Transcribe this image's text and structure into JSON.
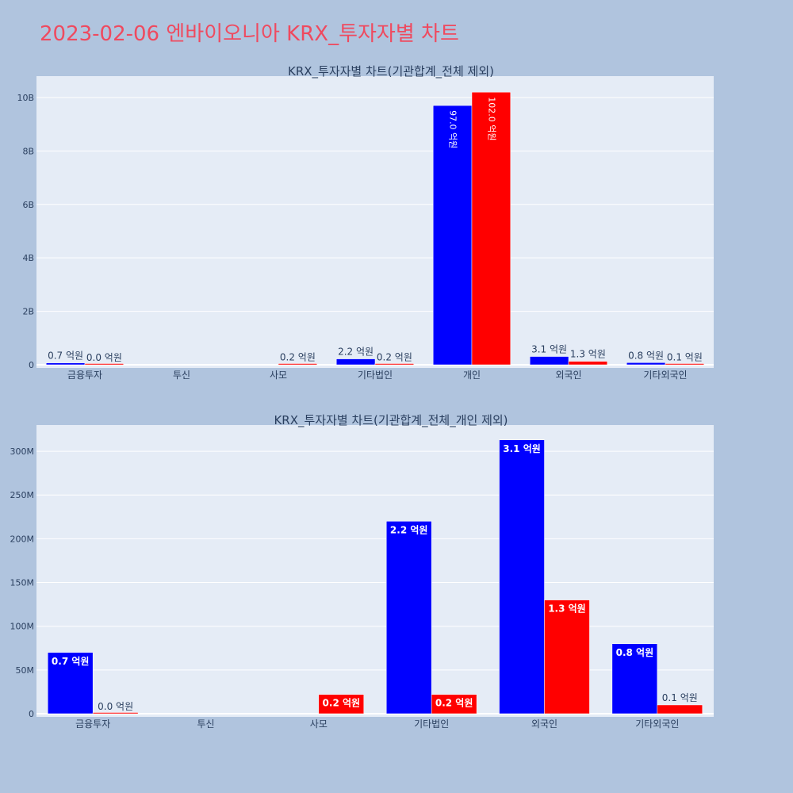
{
  "page": {
    "title": "2023-02-06 엔바이오니아 KRX_투자자별 차트"
  },
  "colors": {
    "buy": "#0000ff",
    "sell": "#ff0000",
    "plot_bg": "#e5ecf6",
    "page_bg": "#b0c4de",
    "title": "#ef4a5f"
  },
  "chart_data": [
    {
      "type": "bar",
      "title": "KRX_투자자별 차트(기관합계_전체 제외)",
      "categories": [
        "금융투자",
        "투신",
        "사모",
        "기타법인",
        "개인",
        "외국인",
        "기타외국인"
      ],
      "series": [
        {
          "values": [
            70000000,
            0,
            0,
            220000000,
            9700000000,
            310000000,
            80000000
          ],
          "labels": [
            "0.7 억원",
            "",
            "",
            "2.2 억원",
            "97.0 억원",
            "3.1 억원",
            "0.8 억원"
          ]
        },
        {
          "values": [
            0,
            0,
            20000000,
            20000000,
            10200000000,
            130000000,
            10000000
          ],
          "labels": [
            "0.0 억원",
            "",
            "0.2 억원",
            "0.2 억원",
            "102.0 억원",
            "1.3 억원",
            "0.1 억원"
          ]
        }
      ],
      "ylim": [
        0,
        10800000000
      ],
      "yticks": [
        0,
        2000000000,
        4000000000,
        6000000000,
        8000000000,
        10000000000
      ],
      "ytick_labels": [
        "0",
        "2B",
        "4B",
        "6B",
        "8B",
        "10B"
      ],
      "grid": true
    },
    {
      "type": "bar",
      "title": "KRX_투자자별 차트(기관합계_전체_개인 제외)",
      "categories": [
        "금융투자",
        "투신",
        "사모",
        "기타법인",
        "외국인",
        "기타외국인"
      ],
      "series": [
        {
          "values": [
            70000000,
            0,
            0,
            220000000,
            313000000,
            80000000
          ],
          "labels": [
            "0.7 억원",
            "",
            "",
            "2.2 억원",
            "3.1 억원",
            "0.8 억원"
          ]
        },
        {
          "values": [
            0,
            0,
            22000000,
            22000000,
            130000000,
            10000000
          ],
          "labels": [
            "0.0 억원",
            "",
            "0.2 억원",
            "0.2 억원",
            "1.3 억원",
            "0.1 억원"
          ]
        }
      ],
      "ylim": [
        0,
        330000000
      ],
      "yticks": [
        0,
        50000000,
        100000000,
        150000000,
        200000000,
        250000000,
        300000000
      ],
      "ytick_labels": [
        "0",
        "50M",
        "100M",
        "150M",
        "200M",
        "250M",
        "300M"
      ],
      "grid": true
    }
  ]
}
